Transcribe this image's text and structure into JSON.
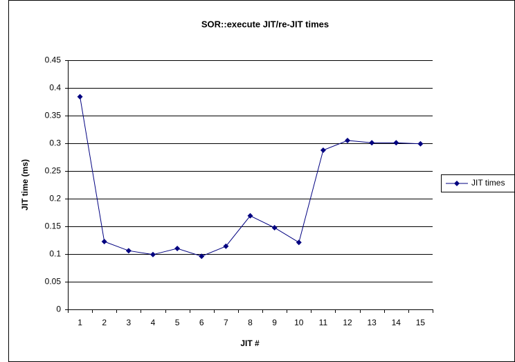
{
  "chart_data": {
    "type": "line",
    "title": "SOR::execute JIT/re-JIT times",
    "x_label": "JIT #",
    "y_label": "JIT time (ms)",
    "categories": [
      "1",
      "2",
      "3",
      "4",
      "5",
      "6",
      "7",
      "8",
      "9",
      "10",
      "11",
      "12",
      "13",
      "14",
      "15"
    ],
    "series": [
      {
        "name": "JIT times",
        "color": "#000080",
        "values": [
          0.384,
          0.1225,
          0.106,
          0.099,
          0.11,
          0.096,
          0.114,
          0.169,
          0.1475,
          0.121,
          0.2875,
          0.305,
          0.301,
          0.301,
          0.299
        ]
      }
    ],
    "ylim": [
      0,
      0.45
    ],
    "yticks": [
      0,
      0.05,
      0.1,
      0.15,
      0.2,
      0.25,
      0.3,
      0.35,
      0.4,
      0.45
    ],
    "grid": true,
    "legend": "right"
  }
}
